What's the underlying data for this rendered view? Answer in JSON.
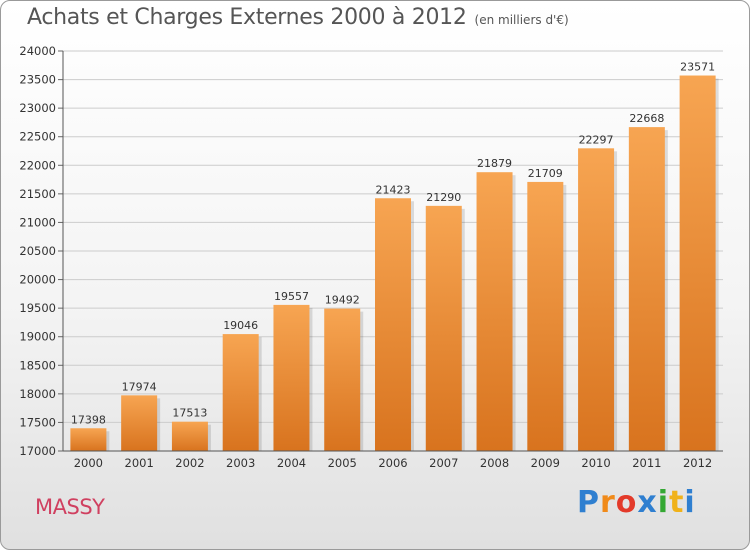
{
  "chart_data": {
    "type": "bar",
    "title": "Achats et Charges Externes 2000 à 2012",
    "subtitle": "(en milliers d'€)",
    "categories": [
      "2000",
      "2001",
      "2002",
      "2003",
      "2004",
      "2005",
      "2006",
      "2007",
      "2008",
      "2009",
      "2010",
      "2011",
      "2012"
    ],
    "values": [
      17398,
      17974,
      17513,
      19046,
      19557,
      19492,
      21423,
      21290,
      21879,
      21709,
      22297,
      22668,
      23571
    ],
    "yticks": [
      17000,
      17500,
      18000,
      18500,
      19000,
      19500,
      20000,
      20500,
      21000,
      21500,
      22000,
      22500,
      23000,
      23500,
      24000
    ],
    "ylim": [
      17000,
      24000
    ],
    "xlabel": "",
    "ylabel": "",
    "grid": true,
    "colors": {
      "bar_light": "#f7a552",
      "bar_dark": "#d8731e",
      "grid": "#cccccc"
    }
  },
  "footer": {
    "city": "MASSY",
    "brand": "Proxiti",
    "brand_chars": [
      "P",
      "r",
      "o",
      "x",
      "i",
      "t",
      "i"
    ]
  }
}
